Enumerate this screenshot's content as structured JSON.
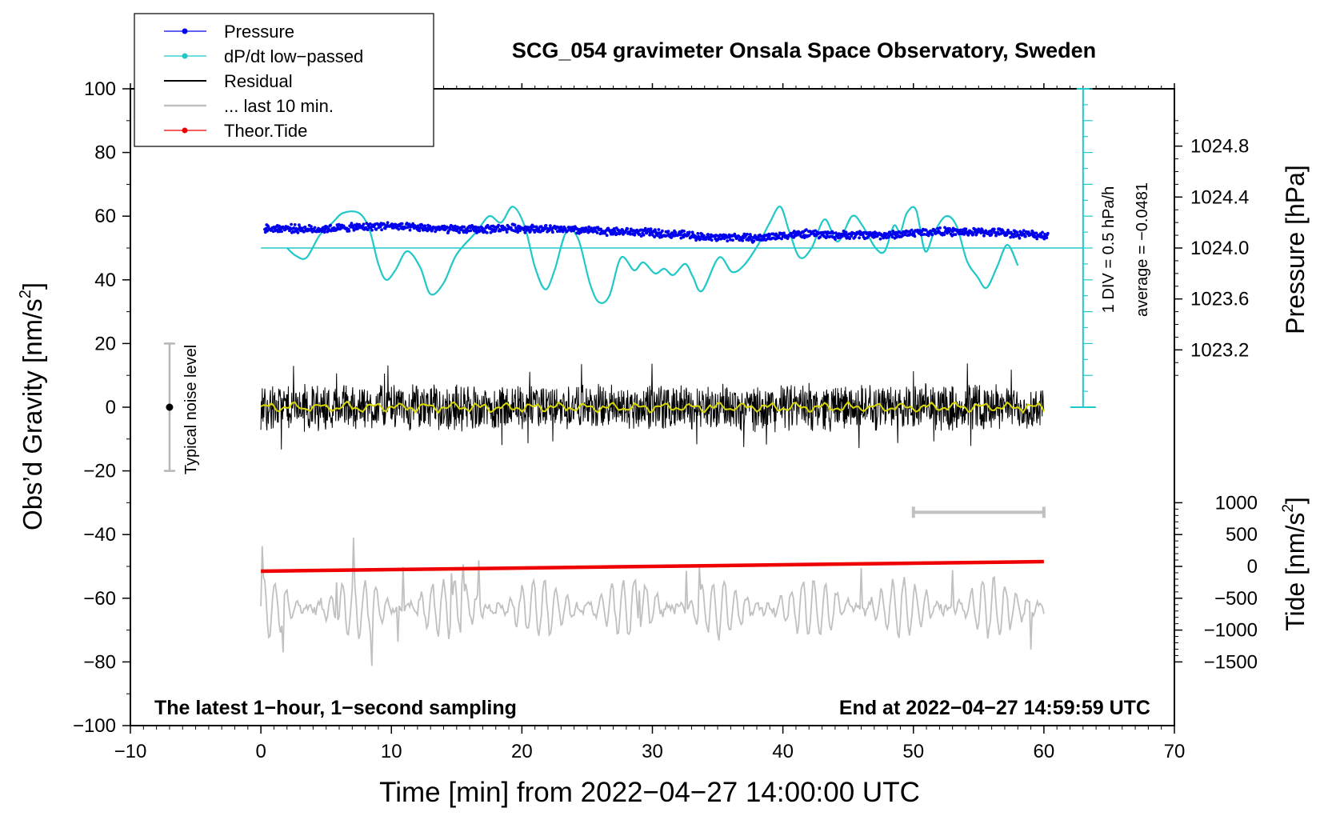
{
  "chart_data": {
    "type": "line",
    "title": "SCG_054 gravimeter Onsala Space Observatory, Sweden",
    "xlabel": "Time [min] from 2022−04−27 14:00:00 UTC",
    "ylabel_left": "Obs’d Gravity [nm/s",
    "ylabel_left_sup": "2",
    "ylabel_left_end": "]",
    "ylabel_right_pressure": "Pressure [hPa]",
    "ylabel_right_tide": "Tide [nm/s",
    "ylabel_right_tide_sup": "2",
    "ylabel_right_tide_end": "]",
    "xlim": [
      -10,
      70
    ],
    "ylim": [
      -100,
      100
    ],
    "x_ticks": [
      -10,
      0,
      10,
      20,
      30,
      40,
      50,
      60,
      70
    ],
    "x_tick_labels": [
      "−10",
      "0",
      "10",
      "20",
      "30",
      "40",
      "50",
      "60",
      "70"
    ],
    "y_ticks": [
      -100,
      -80,
      -60,
      -40,
      -20,
      0,
      20,
      40,
      60,
      80,
      100
    ],
    "y_tick_labels": [
      "−100",
      "−80",
      "−60",
      "−40",
      "−20",
      "0",
      "20",
      "40",
      "60",
      "80",
      "100"
    ],
    "pressure_axis": {
      "ticks": [
        1024.8,
        1024.4,
        1024.0,
        1023.6,
        1023.2
      ],
      "tick_labels": [
        "1024.8",
        "1024.4",
        "1024.0",
        "1023.6",
        "1023.2"
      ],
      "gravity_at_1024": 50,
      "gravity_per_hpa": 40
    },
    "tide_axis": {
      "ticks": [
        1000,
        500,
        0,
        -500,
        -1000,
        -1500
      ],
      "tick_labels": [
        "1000",
        "500",
        "0",
        "−500",
        "−1000",
        "−1500"
      ],
      "gravity_at_zero": -50,
      "gravity_per_nms2": 0.02
    },
    "legend": {
      "position": "top-left",
      "entries": [
        {
          "label": "Pressure",
          "color": "#0000ee",
          "marker": true
        },
        {
          "label": "dP/dt low−passed",
          "color": "#20c8c8",
          "marker": true
        },
        {
          "label": "Residual",
          "color": "#000000",
          "marker": false
        },
        {
          "label": "... last 10 min.",
          "color": "#c0c0c0",
          "marker": false
        },
        {
          "label": "Theor.Tide",
          "color": "#ee0000",
          "marker": true
        }
      ]
    },
    "annotations": {
      "bottom_left": "The latest 1−hour, 1−second sampling",
      "bottom_right": "End at 2022−04−27 14:59:59 UTC",
      "noise_label": "Typical noise level",
      "div_label": "1 DIV = 0.5 hPa/h",
      "average_label": "average = −0.0481"
    },
    "noise_bar": {
      "x": -7,
      "center": 0,
      "half_range": 20
    },
    "dpdt_scale_bar": {
      "x": 63,
      "y_min": 0,
      "y_max": 100,
      "divisions": 20,
      "baseline": 50
    },
    "last10_bar": {
      "x_start": 50,
      "x_end": 60,
      "y": -33
    },
    "pressure_series": {
      "x": [
        0,
        2,
        4,
        6,
        8,
        9.5,
        11,
        13,
        15,
        17,
        19,
        21,
        23,
        25,
        27,
        29,
        31,
        33,
        34.5,
        36,
        38,
        40,
        42,
        44,
        46,
        48,
        50,
        52,
        54,
        56,
        58,
        60
      ],
      "y": [
        56,
        56.2,
        55.8,
        56.3,
        56.6,
        57.1,
        56.5,
        56.2,
        55.8,
        55.9,
        56.3,
        56.1,
        55.8,
        55.5,
        55.2,
        55.0,
        54.5,
        54.0,
        53.2,
        53.5,
        53.0,
        54.0,
        54.5,
        54.0,
        54.2,
        54.0,
        54.8,
        55.2,
        55.0,
        55.0,
        54.5,
        54.0
      ],
      "noise_amp": 1.4
    },
    "dpdt_series": {
      "x": [
        2,
        2.7,
        3.5,
        4.5,
        5.5,
        6.3,
        7.5,
        8.3,
        9,
        9.6,
        10.3,
        11.2,
        12.2,
        13,
        14,
        15,
        16.5,
        17.5,
        18.4,
        19.3,
        20.2,
        21,
        21.8,
        22.5,
        23.4,
        24.3,
        25.2,
        25.9,
        26.7,
        27.6,
        28.6,
        29.3,
        30.2,
        30.9,
        31.6,
        32.5,
        33.1,
        33.8,
        35.1,
        36.1,
        37,
        38.1,
        39,
        39.8,
        40.5,
        41.3,
        42.2,
        43.2,
        44.2,
        45.3,
        46.1,
        47.1,
        47.8,
        48.5,
        49,
        49.5,
        50.2,
        50.9,
        51.6,
        52.5,
        53.3,
        54.1,
        54.9,
        55.6,
        56.4,
        57.2,
        58
      ],
      "y": [
        50,
        47.5,
        47,
        54,
        58,
        61,
        61,
        56,
        45,
        40,
        43,
        49,
        44,
        35.5,
        39,
        48,
        55,
        60,
        58,
        63,
        57,
        44,
        37,
        43,
        55,
        53,
        39,
        33,
        35,
        47,
        43,
        45.5,
        42,
        43.5,
        41.5,
        45,
        41,
        36.5,
        47,
        42.5,
        44.5,
        51,
        58,
        63,
        55,
        47,
        50,
        59,
        52,
        60,
        57,
        50,
        49,
        57,
        55,
        61,
        62,
        49,
        55,
        60,
        57,
        46,
        41,
        37.5,
        44,
        51,
        44.5
      ]
    },
    "residual_series": {
      "x_start": 0,
      "x_end": 60,
      "noise_amp": 8,
      "spike_amp": 14,
      "lowpass_color": "#d8d800"
    },
    "last10_series": {
      "x_start": 0,
      "x_end": 60,
      "center": -63,
      "amp": 9,
      "spike_amp": 13
    },
    "tide_series": {
      "x": [
        0,
        60
      ],
      "y": [
        -51.5,
        -48.5
      ]
    }
  }
}
